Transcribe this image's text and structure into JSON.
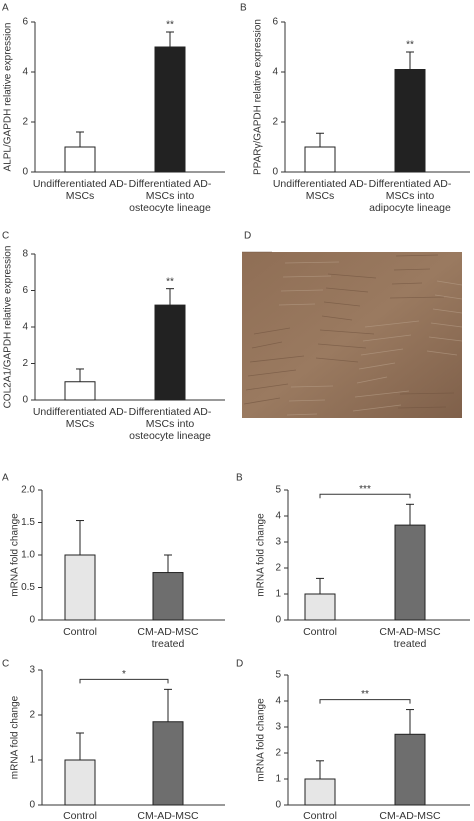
{
  "chart_data": [
    {
      "type": "bar",
      "panel": "A",
      "ylabel": "ALPL/GAPDH relative expression",
      "categories": [
        "Undifferentiated AD-MSCs",
        "Differentiated AD-MSCs into osteocyte lineage"
      ],
      "values": [
        1,
        5
      ],
      "errors": [
        0.6,
        0.6
      ],
      "colors": [
        "#ffffff",
        "#222222"
      ],
      "ylim": [
        0,
        6
      ],
      "yticks": [
        0,
        2,
        4,
        6
      ],
      "annotation": "**"
    },
    {
      "type": "bar",
      "panel": "B",
      "ylabel": "PPARγ/GAPDH relative expression",
      "categories": [
        "Undifferentiated AD-MSCs",
        "Differentiated AD-MSCs into adipocyte lineage"
      ],
      "values": [
        1,
        4.1
      ],
      "errors": [
        0.55,
        0.7
      ],
      "colors": [
        "#ffffff",
        "#222222"
      ],
      "ylim": [
        0,
        6
      ],
      "yticks": [
        0,
        2,
        4,
        6
      ],
      "annotation": "**"
    },
    {
      "type": "bar",
      "panel": "C",
      "ylabel": "COL2A1/GAPDH relative expression",
      "categories": [
        "Undifferentiated AD-MSCs",
        "Differentiated AD-MSCs into osteocyte lineage"
      ],
      "values": [
        1,
        5.2
      ],
      "errors": [
        0.7,
        0.9
      ],
      "colors": [
        "#ffffff",
        "#222222"
      ],
      "ylim": [
        0,
        8
      ],
      "yticks": [
        0,
        2,
        4,
        6,
        8
      ],
      "annotation": "**"
    },
    {
      "type": "image",
      "panel": "D"
    },
    {
      "type": "bar",
      "panel": "A",
      "ylabel": "mRNA fold change",
      "categories": [
        "Control",
        "CM-AD-MSC treated"
      ],
      "values": [
        1.0,
        0.73
      ],
      "errors": [
        0.53,
        0.27
      ],
      "colors": [
        "#e6e6e6",
        "#6e6e6e"
      ],
      "ylim": [
        0,
        2.0
      ],
      "yticks": [
        0,
        {
          "value": 0.5,
          "label": "0.5"
        },
        {
          "value": 1,
          "label": "1.0"
        },
        {
          "value": 1.5,
          "label": "1.5"
        },
        {
          "value": 2,
          "label": "2.0"
        }
      ]
    },
    {
      "type": "bar",
      "panel": "B",
      "ylabel": "mRNA fold change",
      "categories": [
        "Control",
        "CM-AD-MSC treated"
      ],
      "values": [
        1.0,
        3.65
      ],
      "errors": [
        0.6,
        0.8
      ],
      "colors": [
        "#e6e6e6",
        "#6e6e6e"
      ],
      "ylim": [
        0,
        5
      ],
      "yticks": [
        0,
        1,
        2,
        3,
        4,
        5
      ],
      "annotation": "***",
      "bracket": true
    },
    {
      "type": "bar",
      "panel": "C",
      "ylabel": "mRNA fold change",
      "categories": [
        "Control",
        "CM-AD-MSC treated"
      ],
      "values": [
        1.0,
        1.85
      ],
      "errors": [
        0.6,
        0.72
      ],
      "colors": [
        "#e6e6e6",
        "#6e6e6e"
      ],
      "ylim": [
        0,
        3
      ],
      "yticks": [
        0,
        1,
        2,
        3
      ],
      "annotation": "*",
      "bracket": true
    },
    {
      "type": "bar",
      "panel": "D",
      "ylabel": "mRNA fold change",
      "categories": [
        "Control",
        "CM-AD-MSC treated"
      ],
      "values": [
        1.0,
        2.72
      ],
      "errors": [
        0.7,
        0.95
      ],
      "colors": [
        "#e6e6e6",
        "#6e6e6e"
      ],
      "ylim": [
        0,
        5
      ],
      "yticks": [
        0,
        1,
        2,
        3,
        4,
        5
      ],
      "annotation": "**",
      "bracket": true
    }
  ]
}
